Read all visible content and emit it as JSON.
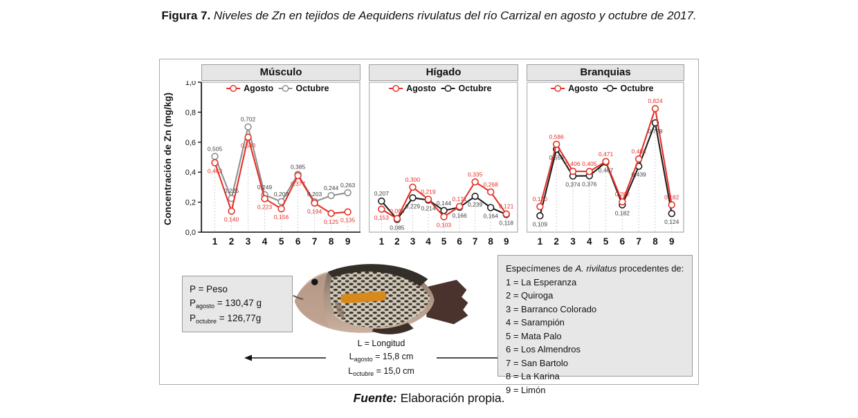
{
  "title": {
    "label": "Figura 7.",
    "text": "Niveles de Zn en tejidos de Aequidens rivulatus del río Carrizal en agosto y octubre de 2017."
  },
  "footer": {
    "label": "Fuente:",
    "text": "Elaboración propia."
  },
  "axis": {
    "ylabel": "Concentración de Zn (mg/kg)"
  },
  "colors": {
    "agosto": "#e63026",
    "octubre_gray": "#8f8f8f",
    "octubre_black": "#1c1c1c",
    "octubre_label": "#3f3f3f",
    "panel_header_bg": "#e6e6e6",
    "grid_dotted": "#bdbdbd"
  },
  "chart_data": [
    {
      "type": "line",
      "title": "Músculo",
      "x_categories": [
        "1",
        "2",
        "3",
        "4",
        "5",
        "6",
        "7",
        "8",
        "9"
      ],
      "ylim": [
        0,
        1
      ],
      "yticks": [
        "0,0",
        "0,2",
        "0,4",
        "0,6",
        "0,8",
        "1,0"
      ],
      "show_y_axis": true,
      "legend_position": "top",
      "series": [
        {
          "name": "Agosto",
          "color": "#e63026",
          "label_color": "#e63026",
          "values": [
            0.463,
            0.14,
            0.633,
            0.223,
            0.156,
            0.377,
            0.194,
            0.125,
            0.135
          ],
          "labels": [
            "0,463",
            "0,140",
            "0,633",
            "0,223",
            "0,156",
            "0,377",
            "0,194",
            "0,125",
            "0,135"
          ]
        },
        {
          "name": "Octubre",
          "color": "#8f8f8f",
          "label_color": "#3f3f3f",
          "values": [
            0.505,
            0.225,
            0.702,
            0.249,
            0.203,
            0.385,
            0.203,
            0.244,
            0.263
          ],
          "labels": [
            "0,505",
            "0,225",
            "0,702",
            "0,249",
            "0,203",
            "0,385",
            "0,203",
            "0,244",
            "0,263"
          ]
        }
      ]
    },
    {
      "type": "line",
      "title": "Hígado",
      "x_categories": [
        "1",
        "2",
        "3",
        "4",
        "5",
        "6",
        "7",
        "8",
        "9"
      ],
      "ylim": [
        0,
        1
      ],
      "yticks": [],
      "show_y_axis": false,
      "legend_position": "top",
      "series": [
        {
          "name": "Agosto",
          "color": "#e63026",
          "label_color": "#e63026",
          "values": [
            0.153,
            0.09,
            0.3,
            0.219,
            0.103,
            0.171,
            0.335,
            0.268,
            0.121
          ],
          "labels": [
            "0,153",
            "0,090",
            "0,300",
            "0,219",
            "0,103",
            "0,171",
            "0,335",
            "0,268",
            "0,121"
          ]
        },
        {
          "name": "Octubre",
          "color": "#1c1c1c",
          "label_color": "#3f3f3f",
          "values": [
            0.207,
            0.085,
            0.229,
            0.214,
            0.144,
            0.166,
            0.239,
            0.164,
            0.118
          ],
          "labels": [
            "0,207",
            "0,085",
            "0,229",
            "0,214",
            "0,144",
            "0,166",
            "0,239",
            "0,164",
            "0,118"
          ]
        }
      ]
    },
    {
      "type": "line",
      "title": "Branquias",
      "x_categories": [
        "1",
        "2",
        "3",
        "4",
        "5",
        "6",
        "7",
        "8",
        "9"
      ],
      "ylim": [
        0,
        1
      ],
      "yticks": [],
      "show_y_axis": false,
      "legend_position": "top",
      "series": [
        {
          "name": "Agosto",
          "color": "#e63026",
          "label_color": "#e63026",
          "values": [
            0.17,
            0.586,
            0.406,
            0.405,
            0.471,
            0.202,
            0.488,
            0.824,
            0.182
          ],
          "labels": [
            "0,170",
            "0,586",
            "0,406",
            "0,405",
            "0,471",
            "0,202",
            "0,488",
            "0,824",
            "0,182"
          ]
        },
        {
          "name": "Octubre",
          "color": "#1c1c1c",
          "label_color": "#3f3f3f",
          "values": [
            0.109,
            0.553,
            0.374,
            0.376,
            0.467,
            0.182,
            0.439,
            0.729,
            0.124
          ],
          "labels": [
            "0,109",
            "0,553",
            "0,374",
            "0,376",
            "0,467",
            "0,182",
            "0,439",
            "0,729",
            "0,124"
          ]
        }
      ]
    }
  ],
  "weight_box": {
    "lines": [
      {
        "text": "P = Peso"
      },
      {
        "base": "P",
        "sub": "agosto",
        "rest": " = 130,47 g"
      },
      {
        "base": "P",
        "sub": "octubre",
        "rest": " = 126,77g"
      }
    ]
  },
  "length_box": {
    "lines": [
      {
        "text": "L = Longitud"
      },
      {
        "base": "L",
        "sub": "agosto",
        "rest": " = 15,8 cm"
      },
      {
        "base": "L",
        "sub": "octubre",
        "rest": " = 15,0 cm"
      }
    ]
  },
  "species_box": {
    "prefix": "Especímenes de ",
    "species": "A. rivilatus",
    "suffix": " procedentes de:",
    "items": [
      "1 = La Esperanza",
      "2 = Quiroga",
      "3 = Barranco Colorado",
      "4 = Sarampión",
      "5 = Mata Palo",
      "6 = Los Almendros",
      "7 = San Bartolo",
      "8 = La Karina",
      "9 = Limón"
    ]
  }
}
